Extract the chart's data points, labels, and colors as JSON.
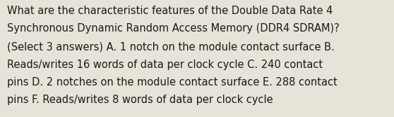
{
  "lines": [
    "What are the characteristic features of the Double Data Rate 4",
    "Synchronous Dynamic Random Access Memory (DDR4 SDRAM)?",
    "(Select 3 answers) A. 1 notch on the module contact surface B.",
    "Reads/writes 16 words of data per clock cycle C. 240 contact",
    "pins D. 2 notches on the module contact surface E. 288 contact",
    "pins F. Reads/writes 8 words of data per clock cycle"
  ],
  "background_color": "#e8e3d8",
  "text_color": "#1a1a1a",
  "font_size": 10.5,
  "fig_width": 5.58,
  "fig_height": 1.67,
  "dpi": 100
}
